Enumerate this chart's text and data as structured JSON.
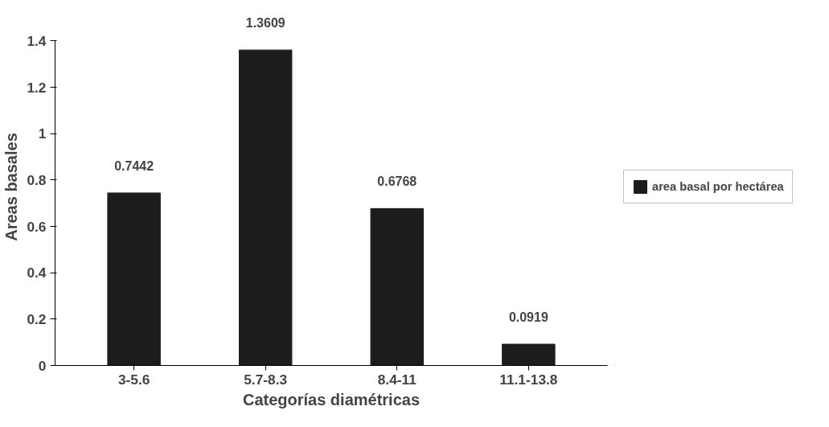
{
  "chart_data": {
    "type": "bar",
    "xlabel": "Categorías diamétricas",
    "ylabel": "Areas basales",
    "categories": [
      "3-5.6",
      "5.7-8.3",
      "8.4-11",
      "11.1-13.8"
    ],
    "series": [
      {
        "name": "area basal por hectárea",
        "color": "#1c1c1c",
        "values": [
          0.7442,
          1.3609,
          0.6768,
          0.0919
        ]
      }
    ],
    "ylim": [
      0,
      1.4
    ],
    "yticks": [
      0,
      0.2,
      0.4,
      0.6,
      0.8,
      1,
      1.2,
      1.4
    ],
    "data_labels": true,
    "legend": "right",
    "grid": false
  }
}
